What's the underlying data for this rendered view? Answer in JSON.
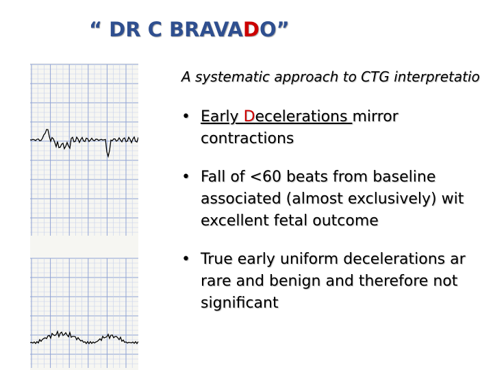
{
  "slide": {
    "title_prefix": "“ DR C BRAVA",
    "title_highlight": "D",
    "title_suffix": "O”",
    "subtitle": "A systematic approach to CTG interpretatio",
    "bullets": [
      {
        "dot": "•",
        "underlined_a": "Early ",
        "underlined_red": "D",
        "underlined_b": "ecelerations ",
        "line1_rest": "mirror",
        "line2": "contractions"
      },
      {
        "dot": "•",
        "line1": "Fall of <60 beats from baseline",
        "line2": "associated (almost exclusively) wit",
        "line3": "excellent fetal outcome"
      },
      {
        "dot": "•",
        "line1": "True early uniform decelerations ar",
        "line2": "rare and benign and therefore not",
        "line3": "significant"
      }
    ]
  },
  "colors": {
    "title": "#2f4f8f",
    "highlight": "#cc0000",
    "grid_major": "#8fa2d4",
    "grid_minor": "#c5d0ea",
    "trace": "#000000"
  }
}
